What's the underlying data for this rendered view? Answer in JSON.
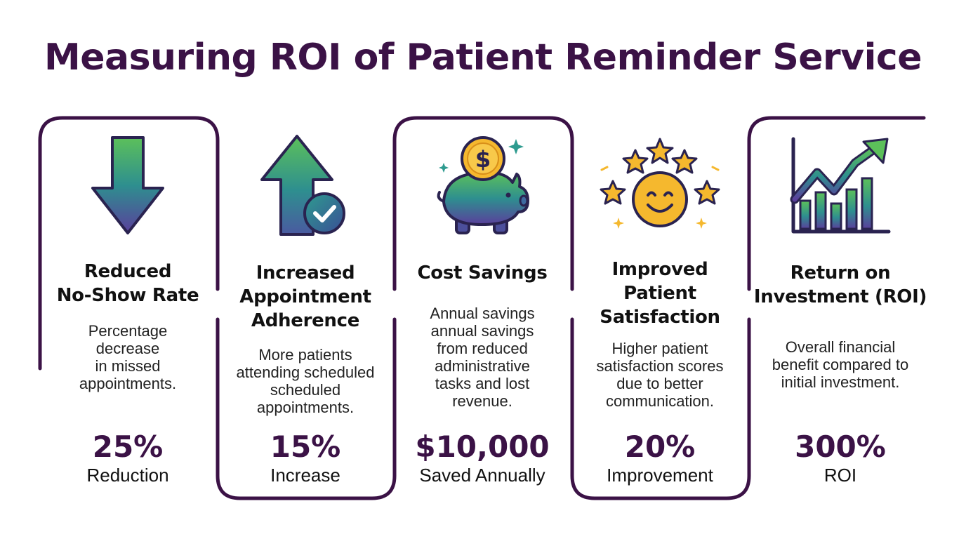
{
  "title": "Measuring ROI of Patient Reminder Service",
  "colors": {
    "title": "#3b1246",
    "frame": "#3b1246",
    "gradient_start": "#5cc05a",
    "gradient_mid": "#2e8f8f",
    "gradient_end": "#5a3f9c",
    "gold": "#f5b82e"
  },
  "metrics": [
    {
      "icon": "arrow-down-icon",
      "heading_lines": [
        "Reduced",
        "No-Show Rate"
      ],
      "description_lines": [
        "Percentage",
        "decrease",
        "in missed",
        "appointments."
      ],
      "value": "25%",
      "caption": "Reduction"
    },
    {
      "icon": "arrow-up-check-icon",
      "heading_lines": [
        "Increased",
        "Appointment",
        "Adherence"
      ],
      "description_lines": [
        "More patients",
        "attending scheduled",
        "scheduled",
        "appointments."
      ],
      "value": "15%",
      "caption": "Increase"
    },
    {
      "icon": "piggy-bank-coin-icon",
      "heading_lines": [
        "Cost Savings"
      ],
      "description_lines": [
        "Annual savings",
        "annual savings",
        "from reduced",
        "administrative",
        "tasks and lost",
        "revenue."
      ],
      "value": "$10,000",
      "caption": "Saved Annually"
    },
    {
      "icon": "smiley-stars-icon",
      "heading_lines": [
        "Improved",
        "Patient",
        "Satisfaction"
      ],
      "description_lines": [
        "Higher patient",
        "satisfaction scores",
        "due to better",
        "communication."
      ],
      "value": "20%",
      "caption": "Improvement"
    },
    {
      "icon": "growth-chart-icon",
      "heading_lines": [
        "Return on",
        "Investment (ROI)"
      ],
      "description_lines": [
        "Overall financial",
        "benefit compared to",
        "initial investment."
      ],
      "value": "300%",
      "caption": "ROI"
    }
  ]
}
